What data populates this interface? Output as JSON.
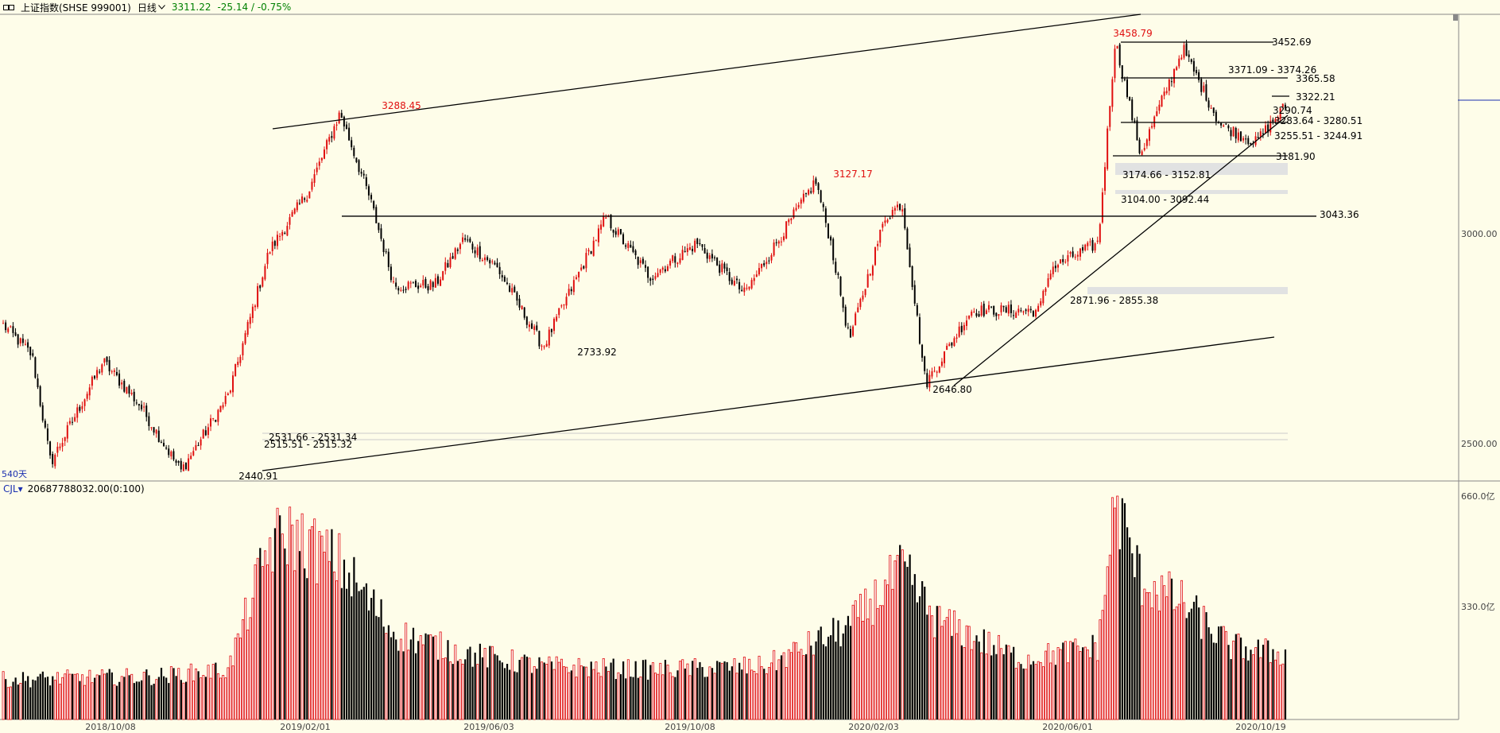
{
  "header": {
    "symbol": "上证指数(SHSE 999001)",
    "period": "日线",
    "price": "3311.22",
    "change": "-25.14 / -0.75%"
  },
  "colors": {
    "up": "#e01010",
    "down": "#000000",
    "background": "#fefde9",
    "accent": "#1a2fb0",
    "gray_zone": "#d9dbe0"
  },
  "main_chart": {
    "days_label": "540天",
    "y_axis_labels": [
      "3000.00",
      "2500.00"
    ],
    "x_axis_labels": [
      "2018/10/08",
      "2019/02/01",
      "2019/06/03",
      "2019/10/08",
      "2020/02/03",
      "2020/06/01",
      "2020/10/19"
    ],
    "peak_labels": [
      "3288.45",
      "3127.17",
      "3458.79"
    ],
    "trough_labels": [
      "2440.91",
      "2733.92",
      "2646.80"
    ],
    "level_labels": [
      "3452.69",
      "3371.09 - 3374.26",
      "3365.58",
      "3322.21",
      "3290.74",
      "3283.64 - 3280.51",
      "3255.51 - 3244.91",
      "3181.90",
      "3174.66 - 3152.81",
      "3104.00 - 3092.44",
      "3043.36",
      "2871.96 - 2855.38",
      "2531.66 - 2531.34",
      "2515.51 - 2515.32"
    ]
  },
  "volume_chart": {
    "indicator": "CJL",
    "value": "20687788032.00(0:100)",
    "y_axis_labels": [
      "660.0亿",
      "330.0亿"
    ]
  },
  "chart_data": {
    "type": "candlestick",
    "title": "上证指数(SHSE 999001)",
    "xlabel": "",
    "ylabel": "",
    "x_ticks": [
      "2018/10/08",
      "2019/02/01",
      "2019/06/03",
      "2019/10/08",
      "2020/02/03",
      "2020/06/01",
      "2020/10/19"
    ],
    "price_anchor_points": [
      {
        "x": "2018/09/20",
        "y": 2790
      },
      {
        "x": "2018/10/08",
        "y": 2715
      },
      {
        "x": "2018/10/19",
        "y": 2460
      },
      {
        "x": "2018/11/19",
        "y": 2700
      },
      {
        "x": "2018/12/10",
        "y": 2600
      },
      {
        "x": "2019/01/04",
        "y": 2440.91
      },
      {
        "x": "2019/02/01",
        "y": 2620
      },
      {
        "x": "2019/02/25",
        "y": 2960
      },
      {
        "x": "2019/03/20",
        "y": 3100
      },
      {
        "x": "2019/04/08",
        "y": 3288.45
      },
      {
        "x": "2019/04/26",
        "y": 3080
      },
      {
        "x": "2019/05/10",
        "y": 2880
      },
      {
        "x": "2019/06/03",
        "y": 2880
      },
      {
        "x": "2019/06/20",
        "y": 2990
      },
      {
        "x": "2019/07/10",
        "y": 2920
      },
      {
        "x": "2019/08/06",
        "y": 2733.92
      },
      {
        "x": "2019/09/12",
        "y": 3040
      },
      {
        "x": "2019/10/08",
        "y": 2900
      },
      {
        "x": "2019/11/05",
        "y": 2980
      },
      {
        "x": "2019/12/03",
        "y": 2860
      },
      {
        "x": "2020/01/14",
        "y": 3127.17
      },
      {
        "x": "2020/01/23",
        "y": 2980
      },
      {
        "x": "2020/02/03",
        "y": 2750
      },
      {
        "x": "2020/02/24",
        "y": 3040
      },
      {
        "x": "2020/03/05",
        "y": 3075
      },
      {
        "x": "2020/03/19",
        "y": 2646.8
      },
      {
        "x": "2020/04/15",
        "y": 2820
      },
      {
        "x": "2020/05/25",
        "y": 2820
      },
      {
        "x": "2020/06/01",
        "y": 2920
      },
      {
        "x": "2020/06/29",
        "y": 2980
      },
      {
        "x": "2020/07/09",
        "y": 3458.79
      },
      {
        "x": "2020/07/24",
        "y": 3190
      },
      {
        "x": "2020/08/18",
        "y": 3440
      },
      {
        "x": "2020/09/09",
        "y": 3260
      },
      {
        "x": "2020/09/30",
        "y": 3218
      },
      {
        "x": "2020/10/19",
        "y": 3311.22
      }
    ],
    "horizontal_levels": [
      3043.36,
      3452.69,
      3365.58,
      3322.21,
      3290.74,
      3181.9
    ],
    "channel_lines": [
      {
        "name": "upper",
        "from": {
          "x": "2019/01/04",
          "y": 3150
        },
        "to": {
          "x": "2020/07/01",
          "y": 3520
        }
      },
      {
        "name": "lower",
        "from": {
          "x": "2019/01/04",
          "y": 2440.91
        },
        "to": {
          "x": "2020/10/19",
          "y": 2760
        }
      },
      {
        "name": "trend",
        "from": {
          "x": "2020/03/19",
          "y": 2646.8
        },
        "to": {
          "x": "2020/10/19",
          "y": 3255
        }
      }
    ],
    "volume_anchor_points": [
      {
        "x": "2018/09/20",
        "y": 120
      },
      {
        "x": "2018/12/20",
        "y": 130
      },
      {
        "x": "2019/02/01",
        "y": 150
      },
      {
        "x": "2019/02/25",
        "y": 520
      },
      {
        "x": "2019/03/08",
        "y": 560
      },
      {
        "x": "2019/04/08",
        "y": 470
      },
      {
        "x": "2019/05/10",
        "y": 260
      },
      {
        "x": "2019/06/20",
        "y": 200
      },
      {
        "x": "2019/08/06",
        "y": 160
      },
      {
        "x": "2019/10/08",
        "y": 150
      },
      {
        "x": "2019/12/15",
        "y": 160
      },
      {
        "x": "2020/02/03",
        "y": 280
      },
      {
        "x": "2020/03/05",
        "y": 450
      },
      {
        "x": "2020/03/25",
        "y": 300
      },
      {
        "x": "2020/05/15",
        "y": 180
      },
      {
        "x": "2020/06/29",
        "y": 220
      },
      {
        "x": "2020/07/09",
        "y": 660
      },
      {
        "x": "2020/07/24",
        "y": 420
      },
      {
        "x": "2020/08/18",
        "y": 350
      },
      {
        "x": "2020/09/15",
        "y": 220
      },
      {
        "x": "2020/10/19",
        "y": 195
      }
    ],
    "volume_unit": "亿",
    "volume_ylim": [
      0,
      660
    ]
  }
}
